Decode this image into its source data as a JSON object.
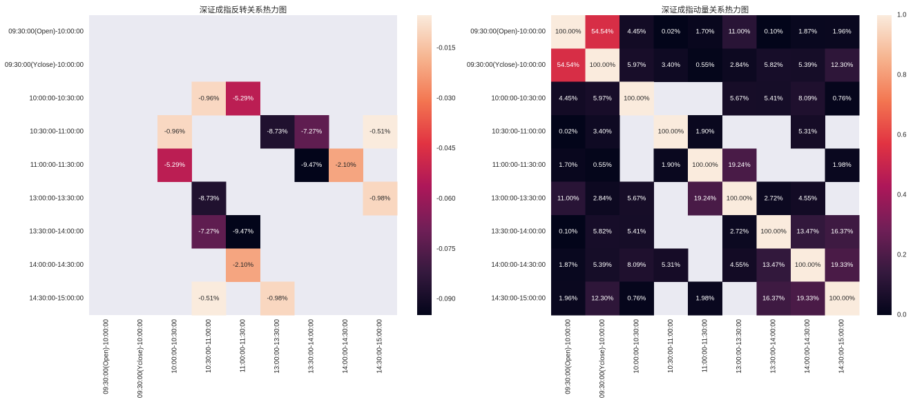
{
  "chart_data": [
    {
      "type": "heatmap",
      "title": "深证成指反转关系热力图",
      "row_labels": [
        "09:30:00(Open)-10:00:00",
        "09:30:00(Yclose)-10:00:00",
        "10:00:00-10:30:00",
        "10:30:00-11:00:00",
        "11:00:00-11:30:00",
        "13:00:00-13:30:00",
        "13:30:00-14:00:00",
        "14:00:00-14:30:00",
        "14:30:00-15:00:00"
      ],
      "col_labels": [
        "09:30:00(Open)-10:00:00",
        "09:30:00(Yclose)-10:00:00",
        "10:00:00-10:30:00",
        "10:30:00-11:00:00",
        "11:00:00-11:30:00",
        "13:00:00-13:30:00",
        "13:30:00-14:00:00",
        "14:00:00-14:30:00",
        "14:30:00-15:00:00"
      ],
      "values": [
        [
          null,
          null,
          null,
          null,
          null,
          null,
          null,
          null,
          null
        ],
        [
          null,
          null,
          null,
          null,
          null,
          null,
          null,
          null,
          null
        ],
        [
          null,
          null,
          null,
          -0.0096,
          -0.0529,
          null,
          null,
          null,
          null
        ],
        [
          null,
          null,
          -0.0096,
          null,
          null,
          -0.0873,
          -0.0727,
          null,
          -0.0051
        ],
        [
          null,
          null,
          -0.0529,
          null,
          null,
          null,
          -0.0947,
          -0.021,
          null
        ],
        [
          null,
          null,
          null,
          -0.0873,
          null,
          null,
          null,
          null,
          -0.0098
        ],
        [
          null,
          null,
          null,
          -0.0727,
          -0.0947,
          null,
          null,
          null,
          null
        ],
        [
          null,
          null,
          null,
          null,
          -0.021,
          null,
          null,
          null,
          null
        ],
        [
          null,
          null,
          null,
          -0.0051,
          null,
          -0.0098,
          null,
          null,
          null
        ]
      ],
      "annotations": [
        [
          null,
          null,
          null,
          null,
          null,
          null,
          null,
          null,
          null
        ],
        [
          null,
          null,
          null,
          null,
          null,
          null,
          null,
          null,
          null
        ],
        [
          null,
          null,
          null,
          "-0.96%",
          "-5.29%",
          null,
          null,
          null,
          null
        ],
        [
          null,
          null,
          "-0.96%",
          null,
          null,
          "-8.73%",
          "-7.27%",
          null,
          "-0.51%"
        ],
        [
          null,
          null,
          "-5.29%",
          null,
          null,
          null,
          "-9.47%",
          "-2.10%",
          null
        ],
        [
          null,
          null,
          null,
          "-8.73%",
          null,
          null,
          null,
          null,
          "-0.98%"
        ],
        [
          null,
          null,
          null,
          "-7.27%",
          "-9.47%",
          null,
          null,
          null,
          null
        ],
        [
          null,
          null,
          null,
          null,
          "-2.10%",
          null,
          null,
          null,
          null
        ],
        [
          null,
          null,
          null,
          "-0.51%",
          null,
          "-0.98%",
          null,
          null,
          null
        ]
      ],
      "vmin": -0.0947,
      "vmax": -0.0051,
      "colorbar_ticks": [
        -0.015,
        -0.03,
        -0.045,
        -0.06,
        -0.075,
        -0.09
      ],
      "colorbar_tick_labels": [
        "-0.015",
        "-0.030",
        "-0.045",
        "-0.060",
        "-0.075",
        "-0.090"
      ]
    },
    {
      "type": "heatmap",
      "title": "深证成指动量关系热力图",
      "row_labels": [
        "09:30:00(Open)-10:00:00",
        "09:30:00(Yclose)-10:00:00",
        "10:00:00-10:30:00",
        "10:30:00-11:00:00",
        "11:00:00-11:30:00",
        "13:00:00-13:30:00",
        "13:30:00-14:00:00",
        "14:00:00-14:30:00",
        "14:30:00-15:00:00"
      ],
      "col_labels": [
        "09:30:00(Open)-10:00:00",
        "09:30:00(Yclose)-10:00:00",
        "10:00:00-10:30:00",
        "10:30:00-11:00:00",
        "11:00:00-11:30:00",
        "13:00:00-13:30:00",
        "13:30:00-14:00:00",
        "14:00:00-14:30:00",
        "14:30:00-15:00:00"
      ],
      "values": [
        [
          1.0,
          0.5454,
          0.0445,
          0.0002,
          0.017,
          0.11,
          0.001,
          0.0187,
          0.0196
        ],
        [
          0.5454,
          1.0,
          0.0597,
          0.034,
          0.0055,
          0.0284,
          0.0582,
          0.0539,
          0.123
        ],
        [
          0.0445,
          0.0597,
          1.0,
          null,
          null,
          0.0567,
          0.0541,
          0.0809,
          0.0076
        ],
        [
          0.0002,
          0.034,
          null,
          1.0,
          0.019,
          null,
          null,
          0.0531,
          null
        ],
        [
          0.017,
          0.0055,
          null,
          0.019,
          1.0,
          0.1924,
          null,
          null,
          0.0198
        ],
        [
          0.11,
          0.0284,
          0.0567,
          null,
          0.1924,
          1.0,
          0.0272,
          0.0455,
          null
        ],
        [
          0.001,
          0.0582,
          0.0541,
          null,
          null,
          0.0272,
          1.0,
          0.1347,
          0.1637
        ],
        [
          0.0187,
          0.0539,
          0.0809,
          0.0531,
          null,
          0.0455,
          0.1347,
          1.0,
          0.1933
        ],
        [
          0.0196,
          0.123,
          0.0076,
          null,
          0.0198,
          null,
          0.1637,
          0.1933,
          1.0
        ]
      ],
      "annotations": [
        [
          "100.00%",
          "54.54%",
          "4.45%",
          "0.02%",
          "1.70%",
          "11.00%",
          "0.10%",
          "1.87%",
          "1.96%"
        ],
        [
          "54.54%",
          "100.00%",
          "5.97%",
          "3.40%",
          "0.55%",
          "2.84%",
          "5.82%",
          "5.39%",
          "12.30%"
        ],
        [
          "4.45%",
          "5.97%",
          "100.00%",
          null,
          null,
          "5.67%",
          "5.41%",
          "8.09%",
          "0.76%"
        ],
        [
          "0.02%",
          "3.40%",
          null,
          "100.00%",
          "1.90%",
          null,
          null,
          "5.31%",
          null
        ],
        [
          "1.70%",
          "0.55%",
          null,
          "1.90%",
          "100.00%",
          "19.24%",
          null,
          null,
          "1.98%"
        ],
        [
          "11.00%",
          "2.84%",
          "5.67%",
          null,
          "19.24%",
          "100.00%",
          "2.72%",
          "4.55%",
          null
        ],
        [
          "0.10%",
          "5.82%",
          "5.41%",
          null,
          null,
          "2.72%",
          "100.00%",
          "13.47%",
          "16.37%"
        ],
        [
          "1.87%",
          "5.39%",
          "8.09%",
          "5.31%",
          null,
          "4.55%",
          "13.47%",
          "100.00%",
          "19.33%"
        ],
        [
          "1.96%",
          "12.30%",
          "0.76%",
          null,
          "1.98%",
          null,
          "16.37%",
          "19.33%",
          "100.00%"
        ]
      ],
      "vmin": 0.0002,
      "vmax": 1.0,
      "colorbar_ticks": [
        1.0,
        0.8,
        0.6,
        0.4,
        0.2,
        0.0
      ],
      "colorbar_tick_labels": [
        "1.0",
        "0.8",
        "0.6",
        "0.4",
        "0.2",
        "0.0"
      ]
    }
  ],
  "colors": {
    "page_background": "#ffffff",
    "axes_background": "#eaeaf2",
    "label_text": "#262626",
    "annotation_on_light": "#262626",
    "annotation_on_dark": "#ffffff",
    "colormap": [
      "#03051a",
      "#35193e",
      "#701f57",
      "#ad1759",
      "#e13342",
      "#f37651",
      "#f6b48f",
      "#faebdd"
    ]
  }
}
